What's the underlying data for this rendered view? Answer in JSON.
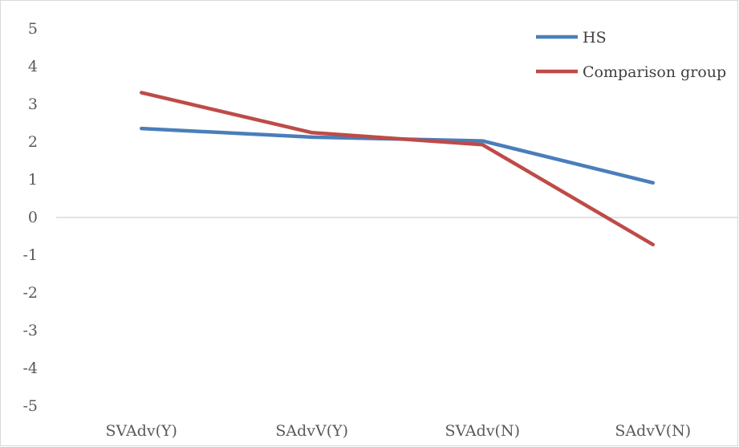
{
  "chart_data": {
    "type": "line",
    "title": "",
    "xlabel": "",
    "ylabel": "",
    "categories": [
      "SVAdv(Y)",
      "SAdvV(Y)",
      "SVAdv(N)",
      "SAdvV(N)"
    ],
    "y_ticks": [
      "5",
      "4",
      "3",
      "2",
      "1",
      "0",
      "-1",
      "-2",
      "-3",
      "-4",
      "-5"
    ],
    "ylim": [
      -5,
      5
    ],
    "grid": false,
    "legend_position": "top-right",
    "series": [
      {
        "name": "HS",
        "color": "#4a7ebb",
        "values": [
          2.36,
          2.13,
          2.03,
          0.92
        ]
      },
      {
        "name": "Comparison group",
        "color": "#be4b48",
        "values": [
          3.31,
          2.25,
          1.93,
          -0.72
        ]
      }
    ]
  }
}
